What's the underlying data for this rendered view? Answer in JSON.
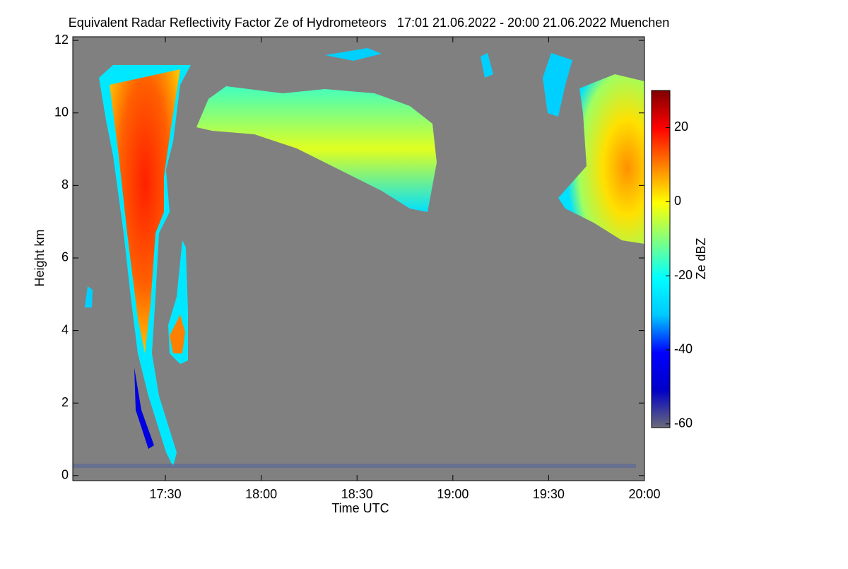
{
  "chart_data": {
    "type": "heatmap",
    "title": "Equivalent Radar Reflectivity Factor Ze of Hydrometeors   17:01 21.06.2022 - 20:00 21.06.2022 Muenchen",
    "x_label": "Time UTC",
    "y_label": "Height km",
    "xlim": [
      1021,
      1200
    ],
    "xticks": [
      {
        "value": 1050,
        "label": "17:30"
      },
      {
        "value": 1080,
        "label": "18:00"
      },
      {
        "value": 1110,
        "label": "18:30"
      },
      {
        "value": 1140,
        "label": "19:00"
      },
      {
        "value": 1170,
        "label": "19:30"
      },
      {
        "value": 1200,
        "label": "20:00"
      }
    ],
    "ylim": [
      -0.14,
      12.1
    ],
    "yticks": [
      0,
      2,
      4,
      6,
      8,
      10,
      12
    ],
    "colorbar": {
      "label": "Ze dBZ",
      "lim": [
        -61,
        30
      ],
      "ticks": [
        -60,
        -40,
        -20,
        0,
        20
      ],
      "colormap": [
        "#6a6a78",
        "#0000c8",
        "#0000ff",
        "#00c8ff",
        "#00ffff",
        "#80ff80",
        "#ffff00",
        "#ff8000",
        "#ff0000",
        "#800000"
      ]
    },
    "background": "#808080"
  }
}
